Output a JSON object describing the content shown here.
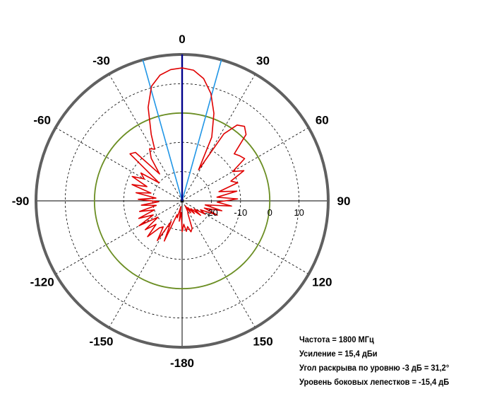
{
  "chart_data": {
    "type": "polar",
    "title": "",
    "angle_ticks": [
      0,
      30,
      60,
      90,
      120,
      150,
      -180,
      -150,
      -120,
      -90,
      -60,
      -30
    ],
    "angle_tick_labels": [
      "0",
      "30",
      "60",
      "90",
      "120",
      "150",
      "-180",
      "-150",
      "-120",
      "-90",
      "-60",
      "-30"
    ],
    "radial_range_db": [
      -30,
      20
    ],
    "radial_ticks": [
      -20,
      -10,
      0,
      10
    ],
    "radial_tick_labels": [
      "-20",
      "-10",
      "0",
      "10"
    ],
    "reference_circle_db": 0,
    "main_beam_deg": 0,
    "half_power_beam_lines_deg": [
      -15.6,
      15.6
    ],
    "gain_dbi": 15.4,
    "pattern": {
      "name": "",
      "color": "#e00000",
      "angles_deg": [
        0,
        5,
        10,
        15,
        20,
        25,
        28,
        32,
        36,
        40,
        44,
        48,
        52,
        56,
        60,
        64,
        68,
        72,
        76,
        80,
        84,
        88,
        92,
        96,
        100,
        104,
        108,
        112,
        116,
        120,
        124,
        128,
        132,
        136,
        140,
        144,
        148,
        152,
        156,
        160,
        164,
        168,
        172,
        176,
        180,
        184,
        188,
        192,
        196,
        200,
        204,
        208,
        212,
        216,
        220,
        224,
        228,
        232,
        236,
        240,
        244,
        248,
        252,
        256,
        260,
        264,
        268,
        272,
        276,
        280,
        284,
        288,
        292,
        296,
        300,
        304,
        308,
        312,
        316,
        320,
        324,
        328,
        332,
        335,
        340,
        345,
        350,
        355
      ],
      "gain_db": [
        15.4,
        14.8,
        12.4,
        8.0,
        1.8,
        -6.0,
        -18.0,
        -3.0,
        2.0,
        3.2,
        1.5,
        -6.0,
        -5.0,
        -4.2,
        -10.0,
        -6.5,
        -12.0,
        -10.0,
        -17.0,
        -11.0,
        -18.0,
        -11.0,
        -18.0,
        -13.0,
        -22.0,
        -16.0,
        -22.0,
        -17.0,
        -23.0,
        -21.0,
        -25.0,
        -22.0,
        -26.0,
        -24.0,
        -27.0,
        -25.0,
        -28.0,
        -26.0,
        -25.0,
        -20.0,
        -19.0,
        -21.0,
        -19.5,
        -22.0,
        -19.5,
        -26.0,
        -23.0,
        -28.0,
        -24.0,
        -25.0,
        -15.0,
        -22.0,
        -14.0,
        -19.0,
        -18.0,
        -13.0,
        -18.0,
        -14.0,
        -20.0,
        -13.0,
        -19.0,
        -14.0,
        -20.0,
        -15.0,
        -21.0,
        -16.0,
        -22.0,
        -15.0,
        -21.0,
        -14.0,
        -19.0,
        -12.0,
        -17.0,
        -11.0,
        -15.0,
        -13.0,
        -20.0,
        -6.0,
        -7.0,
        -18.0,
        -12.0,
        -9.0,
        -10.0,
        -5.0,
        4.0,
        10.5,
        13.6,
        15.0
      ]
    }
  },
  "info": {
    "frequency": "Частота = 1800 МГц",
    "gain": "Усиление = 15,4 дБи",
    "beamwidth": "Угол раскрыва по уровню -3 дБ = 31,2°",
    "sidelobe": "Уровень боковых лепестков = -15,4 дБ"
  },
  "colors": {
    "outer_circle": "#606060",
    "reference_circle": "#6b8e23",
    "beam_lines": "#2196e6",
    "main_axis": "#00008b",
    "pattern": "#e00000"
  }
}
